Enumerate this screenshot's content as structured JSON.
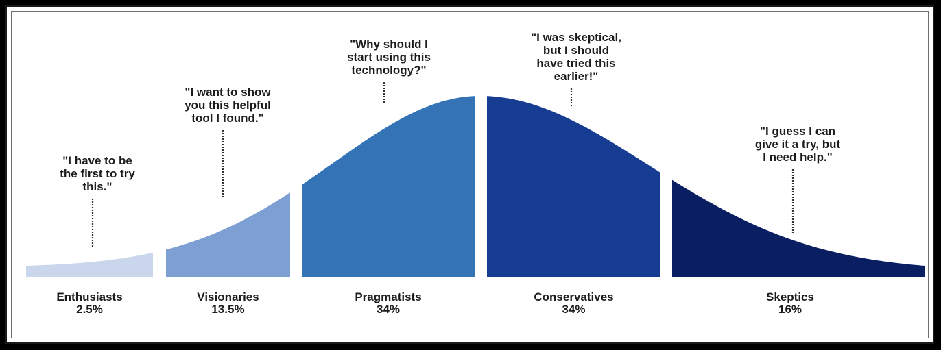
{
  "chart_data": {
    "type": "area",
    "title": "",
    "xlabel": "",
    "ylabel": "",
    "distribution": "normal",
    "segments": [
      {
        "name": "Enthusiasts",
        "value": "2.5%",
        "share": 2.5,
        "quote": [
          "\"I have to be",
          "the first to try",
          "this.\""
        ],
        "color": "#c9d6ec"
      },
      {
        "name": "Visionaries",
        "value": "13.5%",
        "share": 13.5,
        "quote": [
          "\"I want to show",
          "you this helpful",
          "tool I found.\""
        ],
        "color": "#7d9fd4"
      },
      {
        "name": "Pragmatists",
        "value": "34%",
        "share": 34,
        "quote": [
          "\"Why should I",
          "start using this",
          "technology?\""
        ],
        "color": "#3474b6"
      },
      {
        "name": "Conservatives",
        "value": "34%",
        "share": 34,
        "quote": [
          "\"I was  skeptical,",
          "but I should",
          "have tried this",
          "earlier!\""
        ],
        "color": "#173d92"
      },
      {
        "name": "Skeptics",
        "value": "16%",
        "share": 16,
        "quote": [
          "\"I guess I can",
          "give it a try, but",
          "I need help.\""
        ],
        "color": "#0a1f62"
      }
    ]
  }
}
